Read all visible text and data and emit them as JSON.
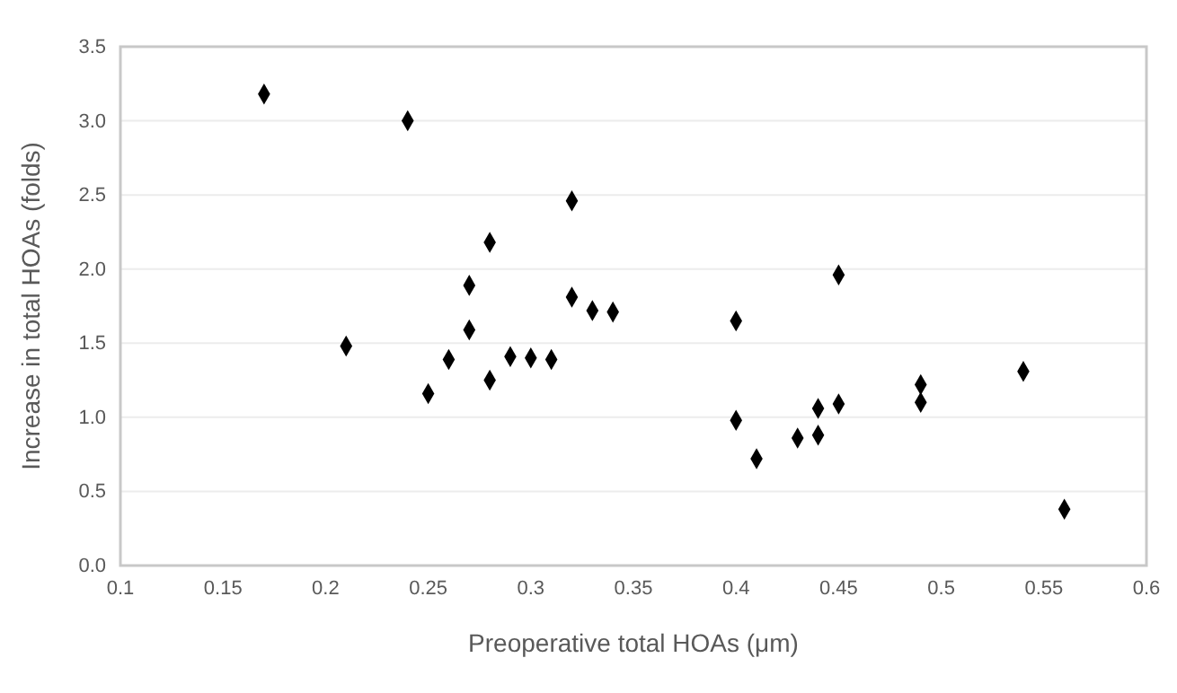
{
  "chart_data": {
    "type": "scatter",
    "xlabel": "Preoperative total HOAs (μm)",
    "ylabel": "Increase in total HOAs  (folds)",
    "x": [
      0.17,
      0.21,
      0.24,
      0.25,
      0.26,
      0.27,
      0.27,
      0.28,
      0.28,
      0.29,
      0.3,
      0.31,
      0.32,
      0.32,
      0.33,
      0.34,
      0.4,
      0.4,
      0.41,
      0.43,
      0.44,
      0.44,
      0.45,
      0.45,
      0.49,
      0.49,
      0.54,
      0.56
    ],
    "values": [
      3.18,
      1.48,
      3.0,
      1.16,
      1.39,
      1.89,
      1.59,
      2.18,
      1.25,
      1.41,
      1.4,
      1.39,
      2.46,
      1.81,
      1.72,
      1.71,
      1.65,
      0.98,
      0.72,
      0.86,
      1.06,
      0.88,
      1.96,
      1.09,
      1.22,
      1.1,
      1.31,
      0.38
    ],
    "color": "#000000",
    "marker": "diamond",
    "xlim": [
      0.1,
      0.6
    ],
    "xticks": [
      0.1,
      0.15,
      0.2,
      0.25,
      0.3,
      0.35,
      0.4,
      0.45,
      0.5,
      0.55,
      0.6
    ],
    "ylim": [
      0,
      3.5
    ],
    "yticks": [
      {
        "value": 0,
        "label": "0.0"
      },
      {
        "value": 0.5,
        "label": "0.5"
      },
      {
        "value": 1,
        "label": "1.0"
      },
      {
        "value": 1.5,
        "label": "1.5"
      },
      {
        "value": 2,
        "label": "2.0"
      },
      {
        "value": 2.5,
        "label": "2.5"
      },
      {
        "value": 3,
        "label": "3.0"
      },
      {
        "value": 3.5,
        "label": "3.5"
      }
    ],
    "grid": "y"
  }
}
